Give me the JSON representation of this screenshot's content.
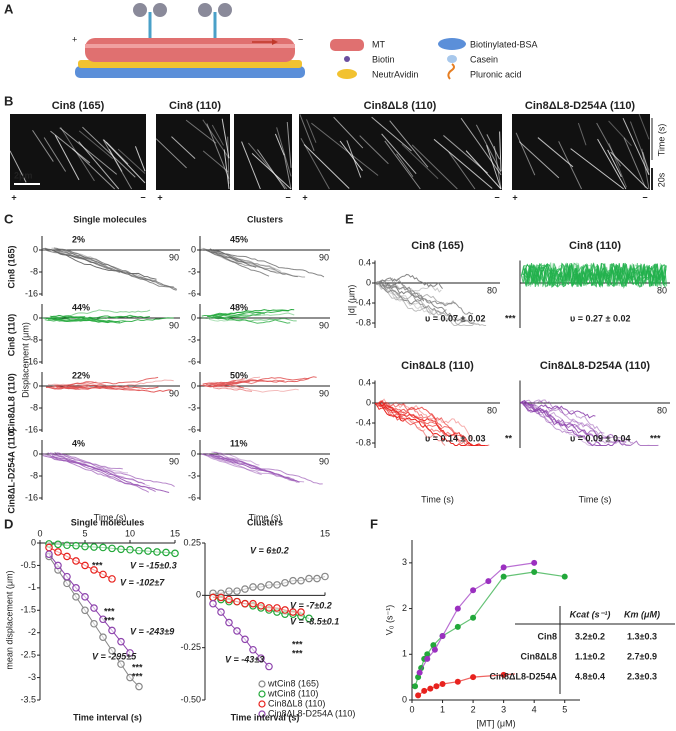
{
  "panel_a": {
    "label": "A",
    "plus": "+",
    "minus": "−",
    "legend": [
      "MT",
      "Biotin",
      "NeutrAvidin",
      "Biotinylated-BSA",
      "Casein",
      "Pluronic acid"
    ]
  },
  "panel_b": {
    "label": "B",
    "titles": [
      {
        "text": "Cin8 (165)",
        "color": "#7f7f7f"
      },
      {
        "text": "Cin8 (110)",
        "color": "#22b14c"
      },
      {
        "text": "Cin8ΔL8 (110)",
        "color": "#e8221e"
      },
      {
        "text": "Cin8ΔL8-D254A (110)",
        "color": "#8e44ad"
      }
    ],
    "scale_bar": "2μm",
    "time_label": "Time (s)",
    "time_bar": "20s",
    "plus": "+",
    "minus": "−"
  },
  "panel_c": {
    "label": "C",
    "columns": [
      "Single molecules",
      "Clusters"
    ],
    "y_label": "Displacement (μm)",
    "x_label": "Time (s)",
    "single_yticks": [
      0,
      -8,
      -16
    ],
    "cluster_yticks": [
      0,
      -3,
      -6
    ],
    "x_end": 90,
    "rows": [
      {
        "name": "Cin8 (165)",
        "color": "#666666",
        "single": "2%",
        "clusters": "45%"
      },
      {
        "name": "Cin8 (110)",
        "color": "#22a83a",
        "single": "44%",
        "clusters": "48%"
      },
      {
        "name": "Cin8ΔL8 (110)",
        "color": "#e05050",
        "single": "22%",
        "clusters": "50%"
      },
      {
        "name": "Cin8ΔL-D254A (110)",
        "color": "#9b59b6",
        "single": "4%",
        "clusters": "11%"
      }
    ]
  },
  "panel_e": {
    "label": "E",
    "y_label": "|d| (μm)",
    "x_label": "Time (s)",
    "yticks": [
      0.4,
      0,
      -0.4,
      -0.8
    ],
    "x_end": 80,
    "plots": [
      {
        "title": "Cin8 (165)",
        "color": "#7f7f7f",
        "velocity": "υ = 0.07 ± 0.02",
        "significance": "***"
      },
      {
        "title": "Cin8 (110)",
        "color": "#22b14c",
        "velocity": "υ = 0.27 ± 0.02"
      },
      {
        "title": "Cin8ΔL8 (110)",
        "color": "#e8221e",
        "velocity": "υ = 0.14 ± 0.03",
        "significance": "**"
      },
      {
        "title": "Cin8ΔL8-D254A (110)",
        "color": "#8e44ad",
        "velocity": "υ = 0.09 ± 0.04",
        "significance": "***"
      }
    ]
  },
  "panel_d": {
    "label": "D",
    "y_label": "mean displacement (μm)",
    "x_label": "Time interval (s)",
    "charts": [
      {
        "title": "Single molecules",
        "xlim": [
          0,
          15
        ],
        "xticks": [
          0,
          5,
          10,
          15
        ],
        "ylim": [
          -3.5,
          0
        ],
        "yticks": [
          0,
          -0.5,
          -1,
          -1.5,
          -2,
          -2.5,
          -3,
          -3.5
        ],
        "series": [
          {
            "color": "#888888",
            "x": [
              1,
              2,
              3,
              4,
              5,
              6,
              7,
              8,
              9,
              10,
              11
            ],
            "values": [
              -0.3,
              -0.6,
              -0.9,
              -1.2,
              -1.5,
              -1.8,
              -2.1,
              -2.4,
              -2.7,
              -3,
              -3.2
            ]
          },
          {
            "color": "#22a83a",
            "x": [
              1,
              2,
              3,
              4,
              5,
              6,
              7,
              8,
              9,
              10,
              11,
              12,
              13,
              14,
              15
            ],
            "values": [
              -0.02,
              -0.03,
              -0.05,
              -0.06,
              -0.08,
              -0.09,
              -0.1,
              -0.12,
              -0.14,
              -0.15,
              -0.17,
              -0.18,
              -0.2,
              -0.21,
              -0.23
            ]
          },
          {
            "color": "#e8221e",
            "x": [
              1,
              2,
              3,
              4,
              5,
              6,
              7,
              8
            ],
            "values": [
              -0.1,
              -0.2,
              -0.3,
              -0.4,
              -0.5,
              -0.6,
              -0.7,
              -0.8
            ]
          },
          {
            "color": "#8e44ad",
            "x": [
              1,
              2,
              3,
              4,
              5,
              6,
              7,
              8,
              9,
              10
            ],
            "values": [
              -0.25,
              -0.5,
              -0.75,
              -1,
              -1.2,
              -1.45,
              -1.7,
              -1.95,
              -2.2,
              -2.45
            ]
          }
        ],
        "annotations": [
          {
            "text": "***",
            "color": "#000000"
          },
          {
            "text": "V = -15±0.3",
            "color": "#22a83a"
          },
          {
            "text": "V = -102±7",
            "color": "#e8221e"
          },
          {
            "text": "***",
            "color": "#000000"
          },
          {
            "text": "***",
            "color": "#e8221e"
          },
          {
            "text": "V = -243±9",
            "color": "#8e44ad"
          },
          {
            "text": "V = -295±5",
            "color": "#666666"
          },
          {
            "text": "***",
            "color": "#000000"
          },
          {
            "text": "***",
            "color": "#e8221e"
          }
        ]
      },
      {
        "title": "Clusters",
        "xlim": [
          0,
          15
        ],
        "xticks": [
          15
        ],
        "ylim": [
          -0.5,
          0.25
        ],
        "yticks": [
          0.25,
          0,
          -0.25,
          {
            "value": -0.5,
            "label": "-0.50"
          }
        ],
        "series": [
          {
            "name": "wtCin8 (165)",
            "color": "#888888",
            "x": [
              1,
              2,
              3,
              4,
              5,
              6,
              7,
              8,
              9,
              10,
              11,
              12,
              13,
              14,
              15
            ],
            "values": [
              0.01,
              0.01,
              0.02,
              0.02,
              0.03,
              0.04,
              0.04,
              0.05,
              0.05,
              0.06,
              0.07,
              0.07,
              0.08,
              0.08,
              0.09
            ]
          },
          {
            "name": "wtCin8 (110)",
            "color": "#22a83a",
            "x": [
              1,
              2,
              3,
              4,
              5,
              6,
              7,
              8,
              9,
              10,
              11,
              12,
              13
            ],
            "values": [
              -0.01,
              -0.02,
              -0.03,
              -0.03,
              -0.04,
              -0.05,
              -0.06,
              -0.07,
              -0.08,
              -0.09,
              -0.09,
              -0.1,
              -0.11
            ]
          },
          {
            "name": "Cin8ΔL8 (110)",
            "color": "#e8221e",
            "x": [
              1,
              2,
              3,
              4,
              5,
              6,
              7,
              8,
              9,
              10,
              11,
              12
            ],
            "values": [
              -0.01,
              -0.01,
              -0.02,
              -0.03,
              -0.04,
              -0.04,
              -0.05,
              -0.06,
              -0.06,
              -0.07,
              -0.08,
              -0.08
            ]
          },
          {
            "name": "Cin8ΔL8-D254A (110)",
            "color": "#8e44ad",
            "x": [
              1,
              2,
              3,
              4,
              5,
              6,
              7,
              8
            ],
            "values": [
              -0.04,
              -0.08,
              -0.13,
              -0.17,
              -0.21,
              -0.26,
              -0.3,
              -0.34
            ]
          }
        ],
        "annotations": [
          {
            "text": "V = 6±0.2",
            "color": "#666666"
          },
          {
            "text": "V = -7±0.2",
            "color": "#e8221e"
          },
          {
            "text": "V = -8.5±0.1",
            "color": "#22a83a"
          },
          {
            "text": "V = -43±3",
            "color": "#8e44ad"
          },
          {
            "text": "***",
            "color": "#e8221e"
          },
          {
            "text": "***",
            "color": "#000000"
          }
        ]
      }
    ]
  },
  "panel_f": {
    "label": "F",
    "y_label": "V₀ (s⁻¹)",
    "x_label": "[MT] (μM)",
    "xlim": [
      0,
      5.5
    ],
    "xticks": [
      0,
      1,
      2,
      3,
      4,
      5
    ],
    "ylim": [
      0,
      3.5
    ],
    "yticks": [
      0,
      1,
      2,
      3
    ],
    "series": [
      {
        "color": "#22a83a",
        "x": [
          0.1,
          0.2,
          0.3,
          0.4,
          0.5,
          0.7,
          1,
          1.5,
          2,
          3,
          4,
          5
        ],
        "values": [
          0.3,
          0.5,
          0.7,
          0.9,
          1,
          1.2,
          1.4,
          1.6,
          1.8,
          2.7,
          2.8,
          2.7
        ]
      },
      {
        "color": "#9b30c0",
        "x": [
          0.25,
          0.5,
          0.75,
          1,
          1.5,
          2,
          2.5,
          3,
          4
        ],
        "values": [
          0.6,
          0.9,
          1.1,
          1.4,
          2,
          2.4,
          2.6,
          2.9,
          3
        ]
      },
      {
        "color": "#e8221e",
        "x": [
          0.2,
          0.4,
          0.6,
          0.8,
          1,
          1.5,
          2,
          3,
          4
        ],
        "values": [
          0.1,
          0.2,
          0.25,
          0.3,
          0.35,
          0.4,
          0.5,
          0.55,
          0.6
        ]
      }
    ],
    "table": {
      "header": [
        "Kcat (s⁻¹)",
        "Km (μM)"
      ],
      "rows": [
        {
          "name": "Cin8",
          "color": "#22a83a",
          "kcat": "3.2±0.2",
          "km": "1.3±0.3"
        },
        {
          "name": "Cin8ΔL8",
          "color": "#e8221e",
          "kcat": "1.1±0.2",
          "km": "2.7±0.9"
        },
        {
          "name": "Cin8ΔL8-D254A",
          "color": "#9b30c0",
          "kcat": "4.8±0.4",
          "km": "2.3±0.3"
        }
      ]
    }
  }
}
